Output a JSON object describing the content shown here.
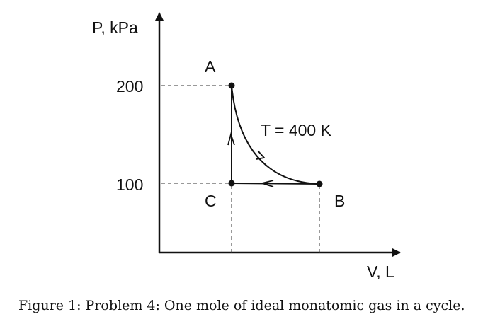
{
  "diagram": {
    "y_axis_label": "P, kPa",
    "x_axis_label": "V, L",
    "y_ticks": [
      "200",
      "100"
    ],
    "points": {
      "A": {
        "label": "A",
        "p_kpa": 200
      },
      "B": {
        "label": "B",
        "p_kpa": 100
      },
      "C": {
        "label": "C",
        "p_kpa": 100
      }
    },
    "isotherm_label": "T = 400 K",
    "processes": [
      "A→B isotherm",
      "B→C isobaric",
      "C→A isochoric"
    ]
  },
  "caption": "Figure 1: Problem 4: One mole of ideal monatomic gas in a cycle.",
  "colors": {
    "ink": "#111111",
    "background": "#ffffff"
  }
}
